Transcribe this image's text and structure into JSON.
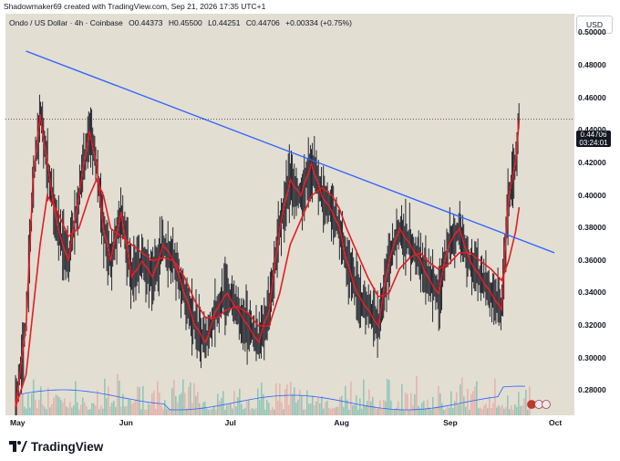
{
  "header": {
    "caption": "Shadowmaker69 created with TradingView.com, Sep 21, 2026 17:35 UTC+1"
  },
  "symbol": {
    "name": "Ondo / US Dollar · 4h · Coinbase",
    "open": "O0.44373",
    "high": "H0.45500",
    "low": "L0.44251",
    "close": "C0.44706",
    "change": "+0.00334 (+0.75%)"
  },
  "currency_label": "USD",
  "last_price": {
    "price": "0.44706",
    "countdown": "03:24:01"
  },
  "brand": "TradingView",
  "colors": {
    "background": "#e2ded2",
    "candles": "#131722",
    "trendline": "#2962ff",
    "ma": "#e51c23",
    "volume_up": "#7fbfb0",
    "volume_down": "#e9a9a3",
    "volume_ma": "#2962ff"
  },
  "chart_data": {
    "type": "line",
    "title": "",
    "xlabel": "",
    "ylabel": "",
    "ylim": [
      0.265,
      0.512
    ],
    "x_ticks": [
      "May",
      "Jun",
      "Jul",
      "Aug",
      "Sep",
      "Oct"
    ],
    "y_ticks": [
      "0.50000",
      "0.48000",
      "0.46000",
      "0.44000",
      "0.42000",
      "0.40000",
      "0.38000",
      "0.36000",
      "0.34000",
      "0.32000",
      "0.30000",
      "0.28000"
    ],
    "x": [
      "May 1",
      "May 4",
      "May 6",
      "May 8",
      "May 10",
      "May 13",
      "May 16",
      "May 19",
      "May 22",
      "May 24",
      "May 26",
      "May 28",
      "May 31",
      "Jun 3",
      "Jun 6",
      "Jun 9",
      "Jun 12",
      "Jun 15",
      "Jun 18",
      "Jun 21",
      "Jun 24",
      "Jun 27",
      "Jun 30",
      "Jul 3",
      "Jul 6",
      "Jul 9",
      "Jul 12",
      "Jul 15",
      "Jul 18",
      "Jul 21",
      "Jul 24",
      "Jul 27",
      "Jul 30",
      "Aug 1",
      "Aug 3",
      "Aug 6",
      "Aug 9",
      "Aug 12",
      "Aug 15",
      "Aug 18",
      "Aug 21",
      "Aug 24",
      "Aug 26",
      "Aug 29",
      "Sep 1",
      "Sep 4",
      "Sep 7",
      "Sep 10",
      "Sep 13",
      "Sep 16",
      "Sep 18",
      "Sep 20",
      "Sep 21"
    ],
    "series": [
      {
        "values": [
          0.27,
          0.32,
          0.41,
          0.45,
          0.42,
          0.38,
          0.36,
          0.4,
          0.44,
          0.42,
          0.38,
          0.36,
          0.39,
          0.35,
          0.36,
          0.35,
          0.37,
          0.36,
          0.34,
          0.32,
          0.31,
          0.33,
          0.34,
          0.33,
          0.32,
          0.31,
          0.33,
          0.38,
          0.41,
          0.4,
          0.42,
          0.4,
          0.39,
          0.38,
          0.36,
          0.34,
          0.33,
          0.32,
          0.36,
          0.38,
          0.37,
          0.36,
          0.35,
          0.34,
          0.37,
          0.38,
          0.36,
          0.35,
          0.34,
          0.33,
          0.4,
          0.42,
          0.447
        ]
      },
      {
        "values": [
          0.27,
          0.29,
          0.33,
          0.37,
          0.4,
          0.39,
          0.375,
          0.38,
          0.4,
          0.41,
          0.4,
          0.38,
          0.375,
          0.37,
          0.365,
          0.36,
          0.362,
          0.36,
          0.35,
          0.335,
          0.325,
          0.325,
          0.33,
          0.332,
          0.328,
          0.32,
          0.32,
          0.34,
          0.37,
          0.385,
          0.4,
          0.405,
          0.4,
          0.392,
          0.38,
          0.365,
          0.35,
          0.338,
          0.34,
          0.355,
          0.362,
          0.365,
          0.36,
          0.355,
          0.358,
          0.365,
          0.365,
          0.36,
          0.355,
          0.348,
          0.36,
          0.378,
          0.393
        ]
      }
    ],
    "trendline": [
      {
        "x": "May 4",
        "y": 0.489
      },
      {
        "x": "Oct 1",
        "y": 0.365
      }
    ],
    "last_price": 0.44706
  }
}
